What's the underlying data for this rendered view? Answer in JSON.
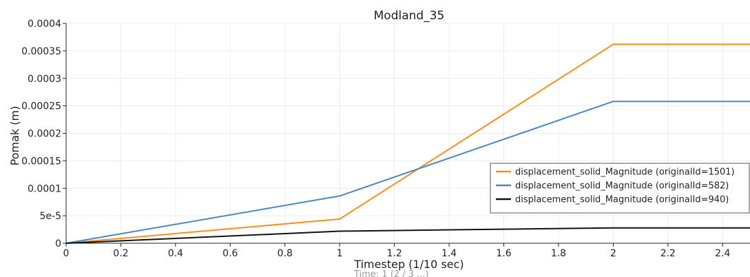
{
  "chart_data": {
    "type": "line",
    "title": "Modland_35",
    "xlabel": "Timestep (1/10 sec)",
    "ylabel": "Pomak (m)",
    "xlim": [
      0,
      2.5
    ],
    "ylim": [
      0,
      0.0004
    ],
    "x_ticks": [
      0,
      0.2,
      0.4,
      0.6,
      0.8,
      1,
      1.2,
      1.4,
      1.6,
      1.8,
      2,
      2.2,
      2.4
    ],
    "x_tick_labels": [
      "0",
      "0.2",
      "0.4",
      "0.6",
      "0.8",
      "1",
      "1.2",
      "1.4",
      "1.6",
      "1.8",
      "2",
      "2.2",
      "2.4"
    ],
    "y_ticks": [
      0,
      5e-05,
      0.0001,
      0.00015,
      0.0002,
      0.00025,
      0.0003,
      0.00035,
      0.0004
    ],
    "y_tick_labels": [
      "0",
      "5e-5",
      "0.0001",
      "0.00015",
      "0.0002",
      "0.00025",
      "0.0003",
      "0.00035",
      "0.0004"
    ],
    "grid": true,
    "legend_position": "right",
    "x": [
      0,
      1,
      2,
      2.5
    ],
    "series": [
      {
        "name": "displacement_solid_Magnitude (originalId=1501)",
        "color": "#ff8c1a",
        "values": [
          0,
          4.4e-05,
          0.000362,
          0.000362
        ]
      },
      {
        "name": "displacement_solid_Magnitude (originalId=582)",
        "color": "#4a86c0",
        "values": [
          0,
          8.6e-05,
          0.000258,
          0.000258
        ]
      },
      {
        "name": "displacement_solid_Magnitude (originalId=940)",
        "color": "#111111",
        "values": [
          0,
          2.2e-05,
          2.8e-05,
          2.8e-05
        ]
      }
    ]
  },
  "partial_caption": "Time: 1 (2 / 3 ...)"
}
